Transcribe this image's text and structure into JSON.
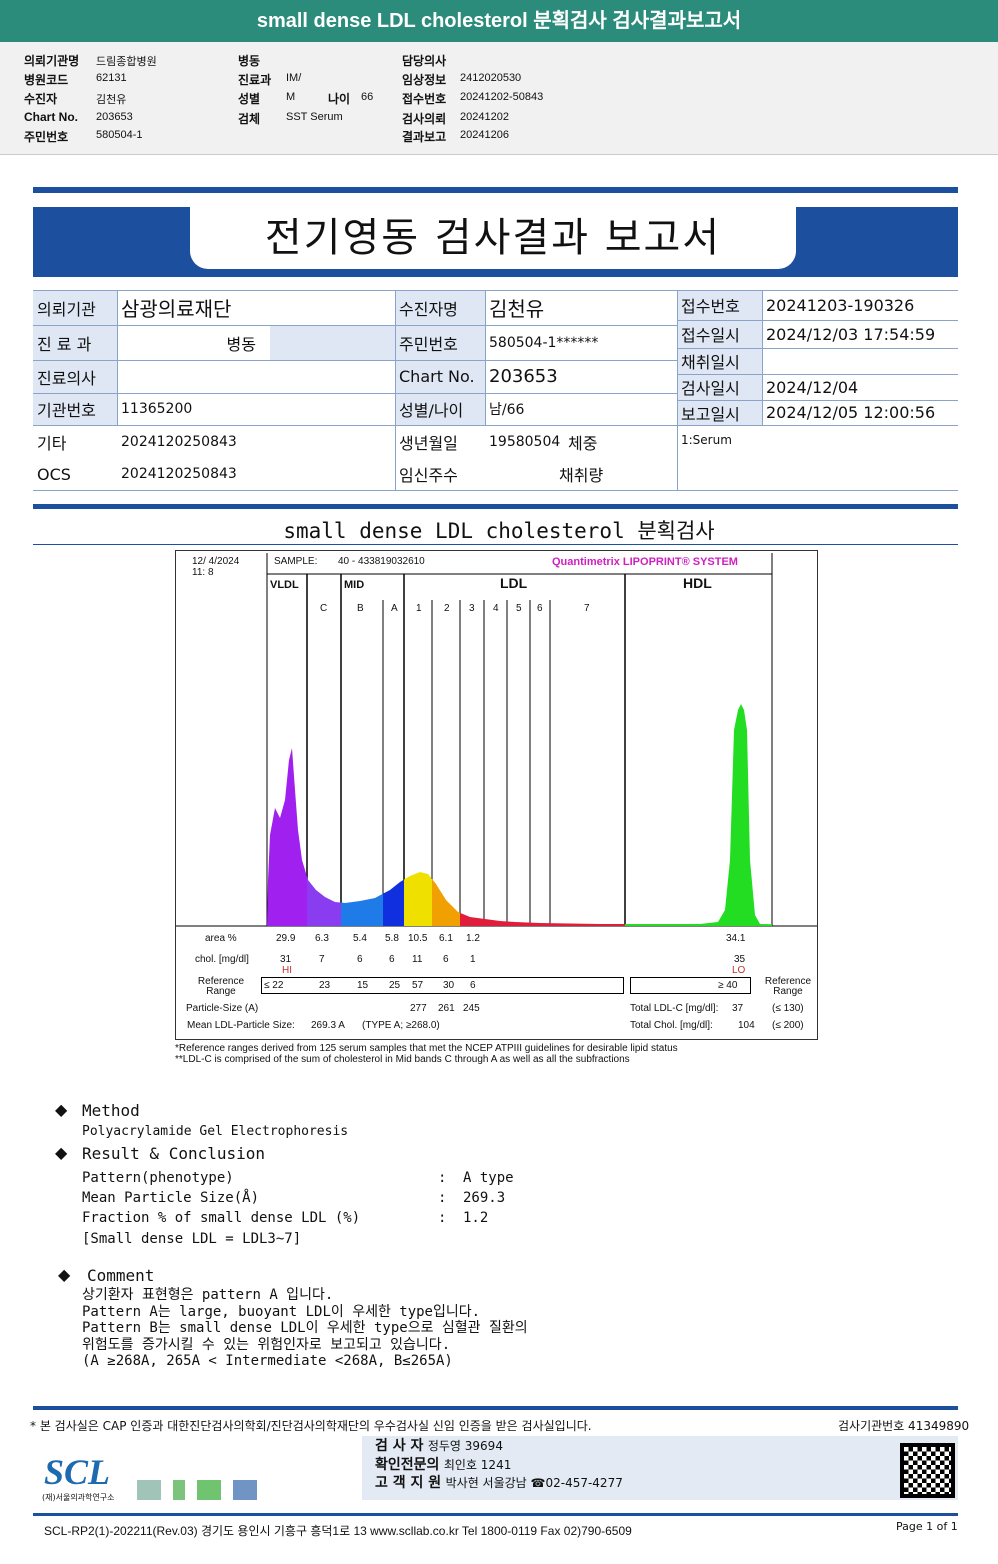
{
  "header": {
    "title": "small dense LDL cholesterol 분획검사 검사결과보고서"
  },
  "info": {
    "col1": [
      {
        "k": "의뢰기관명",
        "v": "드림종합병원"
      },
      {
        "k": "병원코드",
        "v": "62131"
      },
      {
        "k": "수진자",
        "v": "김천유"
      },
      {
        "k": "Chart No.",
        "v": "203653"
      },
      {
        "k": "주민번호",
        "v": "580504-1"
      }
    ],
    "col2": [
      {
        "k": "병동",
        "v": ""
      },
      {
        "k": "진료과",
        "v": "IM/"
      },
      {
        "k": "성별",
        "v": "M"
      },
      {
        "k": "검체",
        "v": "SST Serum"
      }
    ],
    "age_label": "나이",
    "age": "66",
    "col3": [
      {
        "k": "담당의사",
        "v": ""
      },
      {
        "k": "임상정보",
        "v": "2412020530"
      },
      {
        "k": "접수번호",
        "v": "20241202-50843"
      },
      {
        "k": "검사의뢰",
        "v": "20241202"
      },
      {
        "k": "결과보고",
        "v": "20241206"
      }
    ]
  },
  "report": {
    "title": "전기영동 검사결과 보고서",
    "table": {
      "inst_label": "의뢰기관",
      "inst": "삼광의료재단",
      "dept_label": "진 료 과",
      "ward": "병동",
      "doctor_label": "진료의사",
      "doctor": "",
      "org_label": "기관번호",
      "org": "11365200",
      "etc_label": "기타",
      "etc": "2024120250843",
      "ocs_label": "OCS",
      "ocs": "2024120250843",
      "patient_label": "수진자명",
      "patient": "김천유",
      "rrn_label": "주민번호",
      "rrn": "580504-1******",
      "chart_label": "Chart No.",
      "chart": "203653",
      "sexage_label": "성별/나이",
      "sexage": "남/66",
      "birth_label": "생년월일",
      "birth": "19580504",
      "weight_label": "체중",
      "preg_label": "임신주수",
      "volume_label": "채취량",
      "recv_no_label": "접수번호",
      "recv_no": "20241203-190326",
      "recv_label": "접수일시",
      "recv": "2024/12/03 17:54:59",
      "collect_label": "채취일시",
      "collect": "",
      "test_label": "검사일시",
      "test": "2024/12/04",
      "report_label": "보고일시",
      "report": "2024/12/05 12:00:56",
      "specimen": "1:Serum"
    }
  },
  "section_title": "small dense LDL cholesterol 분획검사",
  "chart_data": {
    "type": "area",
    "datetime": [
      "12/ 4/2024",
      "11:  8"
    ],
    "sample_label": "SAMPLE:",
    "sample": "40 - 433819032610",
    "brand": "Quantimetrix LIPOPRINT® SYSTEM",
    "groups": [
      "VLDL",
      "MID",
      "LDL",
      "HDL"
    ],
    "bands": [
      "C",
      "B",
      "A",
      "1",
      "2",
      "3",
      "4",
      "5",
      "6",
      "7"
    ],
    "colors": {
      "vldl": "#a020f0",
      "midC": "#8a3cf0",
      "midB": "#1e7be8",
      "midA": "#1030e0",
      "ldl1": "#f0e000",
      "ldl2": "#f0a000",
      "ldl3": "#e01e3c",
      "hdl": "#22dd22"
    },
    "rows": {
      "area_label": "area %",
      "area": [
        "29.9",
        "6.3",
        "5.4",
        "5.8",
        "10.5",
        "6.1",
        "1.2"
      ],
      "area_hdl": "34.1",
      "chol_label": "chol. [mg/dl]",
      "chol": [
        "31",
        "7",
        "6",
        "6",
        "11",
        "6",
        "1"
      ],
      "chol_hdl": "35",
      "flag_vldl": "HI",
      "flag_hdl": "LO",
      "ref_label": "Reference Range",
      "ref": [
        "≤ 22",
        "23",
        "15",
        "25",
        "57",
        "30",
        "6"
      ],
      "ref_hdl": "≥ 40",
      "psize_label": "Particle-Size (A)",
      "psize": [
        "277",
        "261",
        "245"
      ],
      "mean_label": "Mean LDL-Particle Size:",
      "mean": "269.3 A",
      "mean_type": "(TYPE A; ≥268.0)",
      "tldl_label": "Total LDL-C [mg/dl]:",
      "tldl": "37",
      "tldl_ref": "(≤ 130)",
      "tchol_label": "Total Chol. [mg/dl]:",
      "tchol": "104",
      "tchol_ref": "(≤ 200)"
    },
    "notes": [
      "*Reference ranges derived from 125 serum samples that met the NCEP ATPIII guidelines for desirable lipid status",
      "**LDL-C is comprised of the sum of cholesterol in Mid bands C through A as well as all the subfractions"
    ]
  },
  "method": {
    "title": "Method",
    "text": "Polyacrylamide Gel Electrophoresis"
  },
  "result": {
    "title": "Result & Conclusion",
    "items": [
      {
        "k": "Pattern(phenotype)",
        "v": "A type"
      },
      {
        "k": "Mean Particle Size(Å)",
        "v": "269.3"
      },
      {
        "k": "Fraction % of small dense LDL (%)",
        "v": "1.2"
      }
    ],
    "note": "[Small dense LDL = LDL3~7]"
  },
  "comment": {
    "title": "Comment",
    "lines": [
      "상기환자 표현형은 pattern A 입니다.",
      "Pattern A는 large, buoyant LDL이 우세한 type입니다.",
      "Pattern B는 small dense LDL이 우세한 type으로 심혈관 질환의",
      "위험도를 증가시킬 수 있는 위험인자로 보고되고 있습니다.",
      "(A ≥268A, 265A < Intermediate <268A, B≤265A)"
    ]
  },
  "footer": {
    "cert": "* 본 검사실은 CAP 인증과 대한진단검사의학회/진단검사의학재단의 우수검사실 신임 인증을 받은 검사실입니다.",
    "lab_no": "검사기관번호 41349890",
    "tester_label": "검    사    자",
    "tester": "정두영 39694",
    "confirm_label": "확인전문의",
    "confirm": "최인호 1241",
    "support_label": "고 객 지 원",
    "support": "박사현 서울강남 ☎02-457-4277",
    "logo": "SCL",
    "logo_sub": "(재)서울의과학연구소",
    "address": "SCL-RP2(1)-202211(Rev.03)  경기도 용인시 기흥구 흥덕1로 13  www.scllab.co.kr   Tel 1800-0119    Fax 02)790-6509",
    "page": "Page 1 of 1"
  }
}
